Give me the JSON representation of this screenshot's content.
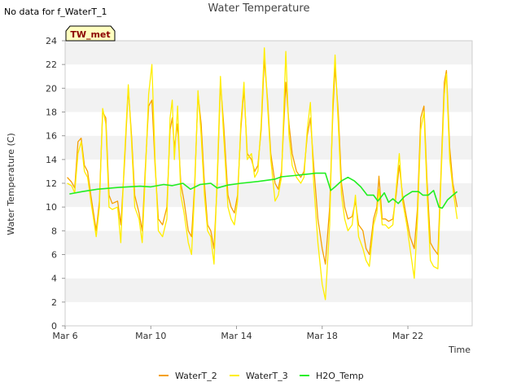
{
  "notice": "No data for f_WaterT_1",
  "badge": "TW_met",
  "chart_data": {
    "type": "line",
    "title": "Water Temperature",
    "xlabel": "Time",
    "ylabel": "Water Temperature (C)",
    "ylim": [
      0,
      24
    ],
    "yticks": [
      0,
      2,
      4,
      6,
      8,
      10,
      12,
      14,
      16,
      18,
      20,
      22,
      24
    ],
    "xlim": [
      6.0,
      25.0
    ],
    "xticks": [
      {
        "label": "Mar 6",
        "day": 6
      },
      {
        "label": "Mar 10",
        "day": 10
      },
      {
        "label": "Mar 14",
        "day": 14
      },
      {
        "label": "Mar 18",
        "day": 18
      },
      {
        "label": "Mar 22",
        "day": 22
      }
    ],
    "x_unit": "day of March",
    "grid": "horizontal bands",
    "legend": "bottom-center",
    "series": [
      {
        "name": "WaterT_2",
        "color": "#f5a000",
        "points": [
          [
            6.1,
            12.5
          ],
          [
            6.3,
            12.1
          ],
          [
            6.45,
            11.6
          ],
          [
            6.6,
            15.5
          ],
          [
            6.75,
            15.8
          ],
          [
            6.9,
            13.5
          ],
          [
            7.05,
            13.0
          ],
          [
            7.2,
            11.0
          ],
          [
            7.45,
            8.0
          ],
          [
            7.6,
            10.5
          ],
          [
            7.75,
            18.0
          ],
          [
            7.9,
            17.5
          ],
          [
            8.05,
            11.0
          ],
          [
            8.2,
            10.3
          ],
          [
            8.45,
            10.5
          ],
          [
            8.6,
            8.5
          ],
          [
            8.75,
            13.0
          ],
          [
            8.95,
            20.0
          ],
          [
            9.1,
            16.0
          ],
          [
            9.25,
            11.0
          ],
          [
            9.45,
            9.5
          ],
          [
            9.6,
            8.0
          ],
          [
            9.75,
            13.5
          ],
          [
            9.9,
            18.5
          ],
          [
            10.05,
            19.0
          ],
          [
            10.2,
            13.5
          ],
          [
            10.35,
            9.0
          ],
          [
            10.55,
            8.5
          ],
          [
            10.75,
            10.0
          ],
          [
            10.9,
            16.5
          ],
          [
            11.0,
            17.5
          ],
          [
            11.1,
            15.0
          ],
          [
            11.25,
            17.0
          ],
          [
            11.4,
            12.0
          ],
          [
            11.55,
            10.5
          ],
          [
            11.75,
            8.0
          ],
          [
            11.9,
            7.5
          ],
          [
            12.05,
            12.0
          ],
          [
            12.2,
            19.5
          ],
          [
            12.35,
            17.0
          ],
          [
            12.5,
            12.0
          ],
          [
            12.65,
            8.5
          ],
          [
            12.8,
            8.0
          ],
          [
            12.95,
            6.5
          ],
          [
            13.1,
            12.0
          ],
          [
            13.25,
            20.5
          ],
          [
            13.4,
            17.0
          ],
          [
            13.6,
            11.0
          ],
          [
            13.75,
            10.0
          ],
          [
            13.9,
            9.5
          ],
          [
            14.05,
            11.0
          ],
          [
            14.2,
            16.5
          ],
          [
            14.35,
            20.0
          ],
          [
            14.5,
            14.5
          ],
          [
            14.7,
            14.0
          ],
          [
            14.85,
            13.0
          ],
          [
            15.0,
            13.5
          ],
          [
            15.15,
            16.5
          ],
          [
            15.3,
            22.5
          ],
          [
            15.45,
            19.0
          ],
          [
            15.6,
            14.5
          ],
          [
            15.8,
            12.0
          ],
          [
            15.95,
            11.5
          ],
          [
            16.1,
            13.0
          ],
          [
            16.3,
            20.5
          ],
          [
            16.45,
            17.0
          ],
          [
            16.6,
            14.5
          ],
          [
            16.8,
            13.0
          ],
          [
            17.0,
            12.5
          ],
          [
            17.15,
            13.0
          ],
          [
            17.3,
            16.0
          ],
          [
            17.45,
            17.5
          ],
          [
            17.6,
            13.5
          ],
          [
            17.8,
            9.0
          ],
          [
            18.0,
            6.5
          ],
          [
            18.15,
            5.2
          ],
          [
            18.35,
            10.0
          ],
          [
            18.5,
            18.0
          ],
          [
            18.6,
            21.8
          ],
          [
            18.75,
            18.0
          ],
          [
            18.9,
            12.0
          ],
          [
            19.05,
            10.0
          ],
          [
            19.2,
            9.0
          ],
          [
            19.4,
            9.2
          ],
          [
            19.55,
            10.5
          ],
          [
            19.7,
            8.5
          ],
          [
            19.9,
            8.0
          ],
          [
            20.05,
            6.5
          ],
          [
            20.2,
            6.0
          ],
          [
            20.4,
            9.0
          ],
          [
            20.55,
            10.0
          ],
          [
            20.65,
            12.6
          ],
          [
            20.8,
            9.0
          ],
          [
            20.95,
            9.0
          ],
          [
            21.1,
            8.8
          ],
          [
            21.3,
            9.0
          ],
          [
            21.45,
            11.0
          ],
          [
            21.6,
            13.5
          ],
          [
            21.75,
            11.0
          ],
          [
            21.95,
            9.0
          ],
          [
            22.1,
            7.5
          ],
          [
            22.3,
            6.5
          ],
          [
            22.45,
            10.0
          ],
          [
            22.6,
            17.5
          ],
          [
            22.75,
            18.5
          ],
          [
            22.9,
            12.0
          ],
          [
            23.05,
            7.0
          ],
          [
            23.2,
            6.5
          ],
          [
            23.4,
            6.0
          ],
          [
            23.55,
            13.0
          ],
          [
            23.7,
            20.5
          ],
          [
            23.8,
            21.5
          ],
          [
            23.95,
            15.0
          ],
          [
            24.1,
            12.0
          ],
          [
            24.3,
            10.0
          ]
        ]
      },
      {
        "name": "WaterT_3",
        "color": "#ffee00",
        "points": [
          [
            6.1,
            12.0
          ],
          [
            6.3,
            11.8
          ],
          [
            6.45,
            11.2
          ],
          [
            6.6,
            14.5
          ],
          [
            6.75,
            15.5
          ],
          [
            6.9,
            13.0
          ],
          [
            7.05,
            12.5
          ],
          [
            7.2,
            10.5
          ],
          [
            7.45,
            7.5
          ],
          [
            7.6,
            10.0
          ],
          [
            7.75,
            18.3
          ],
          [
            7.9,
            17.0
          ],
          [
            8.05,
            10.0
          ],
          [
            8.2,
            9.8
          ],
          [
            8.45,
            10.0
          ],
          [
            8.6,
            7.0
          ],
          [
            8.75,
            13.5
          ],
          [
            8.95,
            20.3
          ],
          [
            9.1,
            15.5
          ],
          [
            9.25,
            10.0
          ],
          [
            9.45,
            9.0
          ],
          [
            9.6,
            7.0
          ],
          [
            9.75,
            13.0
          ],
          [
            9.9,
            19.5
          ],
          [
            10.05,
            22.0
          ],
          [
            10.2,
            14.0
          ],
          [
            10.35,
            8.0
          ],
          [
            10.55,
            7.5
          ],
          [
            10.75,
            9.0
          ],
          [
            10.9,
            17.5
          ],
          [
            11.0,
            19.0
          ],
          [
            11.1,
            14.0
          ],
          [
            11.25,
            18.5
          ],
          [
            11.4,
            11.0
          ],
          [
            11.55,
            9.5
          ],
          [
            11.75,
            7.0
          ],
          [
            11.9,
            6.0
          ],
          [
            12.05,
            11.5
          ],
          [
            12.2,
            19.8
          ],
          [
            12.35,
            16.0
          ],
          [
            12.5,
            11.0
          ],
          [
            12.65,
            8.0
          ],
          [
            12.8,
            7.5
          ],
          [
            12.95,
            5.2
          ],
          [
            13.1,
            12.5
          ],
          [
            13.25,
            21.0
          ],
          [
            13.4,
            16.0
          ],
          [
            13.6,
            10.0
          ],
          [
            13.75,
            9.0
          ],
          [
            13.9,
            8.5
          ],
          [
            14.05,
            10.5
          ],
          [
            14.2,
            17.0
          ],
          [
            14.35,
            20.5
          ],
          [
            14.5,
            14.0
          ],
          [
            14.7,
            14.5
          ],
          [
            14.85,
            12.5
          ],
          [
            15.0,
            13.0
          ],
          [
            15.15,
            17.0
          ],
          [
            15.3,
            23.4
          ],
          [
            15.45,
            18.5
          ],
          [
            15.6,
            14.0
          ],
          [
            15.8,
            10.5
          ],
          [
            15.95,
            11.0
          ],
          [
            16.1,
            12.5
          ],
          [
            16.3,
            23.1
          ],
          [
            16.45,
            16.0
          ],
          [
            16.6,
            13.5
          ],
          [
            16.8,
            12.5
          ],
          [
            17.0,
            12.0
          ],
          [
            17.15,
            12.5
          ],
          [
            17.3,
            16.5
          ],
          [
            17.45,
            18.8
          ],
          [
            17.6,
            12.0
          ],
          [
            17.8,
            7.0
          ],
          [
            18.0,
            3.5
          ],
          [
            18.15,
            2.2
          ],
          [
            18.35,
            8.5
          ],
          [
            18.5,
            19.0
          ],
          [
            18.6,
            22.8
          ],
          [
            18.75,
            17.0
          ],
          [
            18.9,
            11.0
          ],
          [
            19.05,
            9.0
          ],
          [
            19.2,
            8.0
          ],
          [
            19.4,
            8.5
          ],
          [
            19.55,
            11.0
          ],
          [
            19.7,
            7.5
          ],
          [
            19.9,
            6.5
          ],
          [
            20.05,
            5.5
          ],
          [
            20.2,
            5.0
          ],
          [
            20.4,
            8.5
          ],
          [
            20.55,
            9.5
          ],
          [
            20.65,
            11.5
          ],
          [
            20.8,
            8.5
          ],
          [
            20.95,
            8.5
          ],
          [
            21.1,
            8.2
          ],
          [
            21.3,
            8.5
          ],
          [
            21.45,
            11.5
          ],
          [
            21.6,
            14.5
          ],
          [
            21.75,
            10.5
          ],
          [
            21.95,
            8.5
          ],
          [
            22.1,
            6.5
          ],
          [
            22.3,
            4.0
          ],
          [
            22.45,
            9.0
          ],
          [
            22.6,
            16.5
          ],
          [
            22.75,
            18.0
          ],
          [
            22.9,
            11.0
          ],
          [
            23.05,
            5.5
          ],
          [
            23.2,
            5.0
          ],
          [
            23.4,
            4.8
          ],
          [
            23.55,
            12.5
          ],
          [
            23.7,
            19.5
          ],
          [
            23.8,
            21.2
          ],
          [
            23.95,
            14.0
          ],
          [
            24.1,
            11.5
          ],
          [
            24.3,
            9.0
          ]
        ]
      },
      {
        "name": "H2O_Temp",
        "color": "#22ee22",
        "points": [
          [
            6.2,
            11.1
          ],
          [
            6.8,
            11.3
          ],
          [
            7.5,
            11.5
          ],
          [
            8.5,
            11.65
          ],
          [
            9.5,
            11.75
          ],
          [
            10.0,
            11.7
          ],
          [
            10.6,
            11.9
          ],
          [
            11.0,
            11.8
          ],
          [
            11.5,
            12.0
          ],
          [
            11.85,
            11.5
          ],
          [
            12.3,
            11.9
          ],
          [
            12.8,
            12.0
          ],
          [
            13.1,
            11.6
          ],
          [
            13.6,
            11.85
          ],
          [
            14.2,
            12.0
          ],
          [
            15.0,
            12.15
          ],
          [
            15.8,
            12.35
          ],
          [
            16.1,
            12.55
          ],
          [
            16.7,
            12.65
          ],
          [
            17.2,
            12.75
          ],
          [
            17.7,
            12.85
          ],
          [
            18.15,
            12.85
          ],
          [
            18.4,
            11.4
          ],
          [
            18.6,
            11.7
          ],
          [
            18.9,
            12.2
          ],
          [
            19.2,
            12.5
          ],
          [
            19.5,
            12.2
          ],
          [
            19.8,
            11.7
          ],
          [
            20.1,
            11.0
          ],
          [
            20.4,
            11.0
          ],
          [
            20.6,
            10.5
          ],
          [
            20.9,
            11.2
          ],
          [
            21.1,
            10.4
          ],
          [
            21.3,
            10.7
          ],
          [
            21.55,
            10.3
          ],
          [
            21.85,
            10.9
          ],
          [
            22.2,
            11.3
          ],
          [
            22.5,
            11.3
          ],
          [
            22.7,
            11.0
          ],
          [
            22.95,
            11.0
          ],
          [
            23.2,
            11.4
          ],
          [
            23.45,
            10.0
          ],
          [
            23.6,
            9.9
          ],
          [
            23.85,
            10.6
          ],
          [
            24.1,
            11.0
          ],
          [
            24.3,
            11.3
          ]
        ]
      }
    ]
  }
}
